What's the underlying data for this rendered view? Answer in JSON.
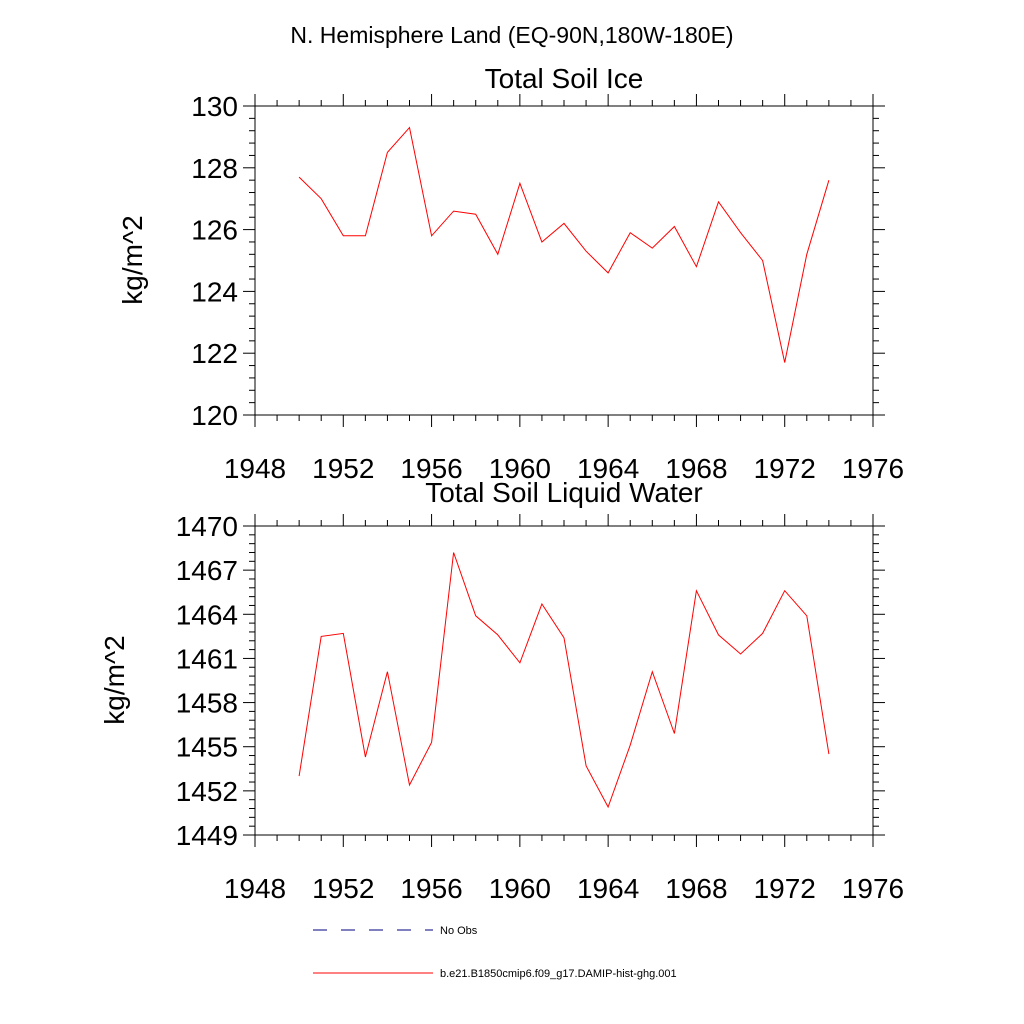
{
  "page_title": "N. Hemisphere Land (EQ-90N,180W-180E)",
  "colors": {
    "series": "#ff0000",
    "no_obs": "#000080",
    "axis": "#000000"
  },
  "legend": {
    "no_obs_label": "No Obs",
    "series_label": "b.e21.B1850cmip6.f09_g17.DAMIP-hist-ghg.001"
  },
  "chart_data": [
    {
      "type": "line",
      "title": "Total Soil Ice",
      "ylabel": "kg/m^2",
      "xlabel": "",
      "xlim": [
        1948,
        1976
      ],
      "ylim": [
        120,
        130
      ],
      "xticks": [
        1948,
        1952,
        1956,
        1960,
        1964,
        1968,
        1972,
        1976
      ],
      "yticks": [
        120,
        122,
        124,
        126,
        128,
        130
      ],
      "grid": false,
      "series": [
        {
          "name": "b.e21.B1850cmip6.f09_g17.DAMIP-hist-ghg.001",
          "x": [
            1950,
            1951,
            1952,
            1953,
            1954,
            1955,
            1956,
            1957,
            1958,
            1959,
            1960,
            1961,
            1962,
            1963,
            1964,
            1965,
            1966,
            1967,
            1968,
            1969,
            1970,
            1971,
            1972,
            1973,
            1974
          ],
          "y": [
            127.7,
            127.0,
            125.8,
            125.8,
            128.5,
            129.3,
            125.8,
            126.6,
            126.5,
            125.2,
            127.5,
            125.6,
            126.2,
            125.3,
            124.6,
            125.9,
            125.4,
            126.1,
            124.8,
            126.9,
            125.9,
            125.0,
            121.7,
            125.2,
            127.6
          ]
        }
      ]
    },
    {
      "type": "line",
      "title": "Total Soil Liquid Water",
      "ylabel": "kg/m^2",
      "xlabel": "",
      "xlim": [
        1948,
        1976
      ],
      "ylim": [
        1449,
        1470
      ],
      "xticks": [
        1948,
        1952,
        1956,
        1960,
        1964,
        1968,
        1972,
        1976
      ],
      "yticks": [
        1449,
        1452,
        1455,
        1458,
        1461,
        1464,
        1467,
        1470
      ],
      "grid": false,
      "series": [
        {
          "name": "b.e21.B1850cmip6.f09_g17.DAMIP-hist-ghg.001",
          "x": [
            1950,
            1951,
            1952,
            1953,
            1954,
            1955,
            1956,
            1957,
            1958,
            1959,
            1960,
            1961,
            1962,
            1963,
            1964,
            1965,
            1966,
            1967,
            1968,
            1969,
            1970,
            1971,
            1972,
            1973,
            1974
          ],
          "y": [
            1453.0,
            1462.5,
            1462.7,
            1454.3,
            1460.1,
            1452.4,
            1455.3,
            1468.2,
            1463.9,
            1462.6,
            1460.7,
            1464.7,
            1462.4,
            1453.7,
            1450.9,
            1455.1,
            1460.1,
            1455.9,
            1465.6,
            1462.6,
            1461.3,
            1462.7,
            1465.6,
            1463.9,
            1454.5
          ]
        }
      ]
    }
  ]
}
